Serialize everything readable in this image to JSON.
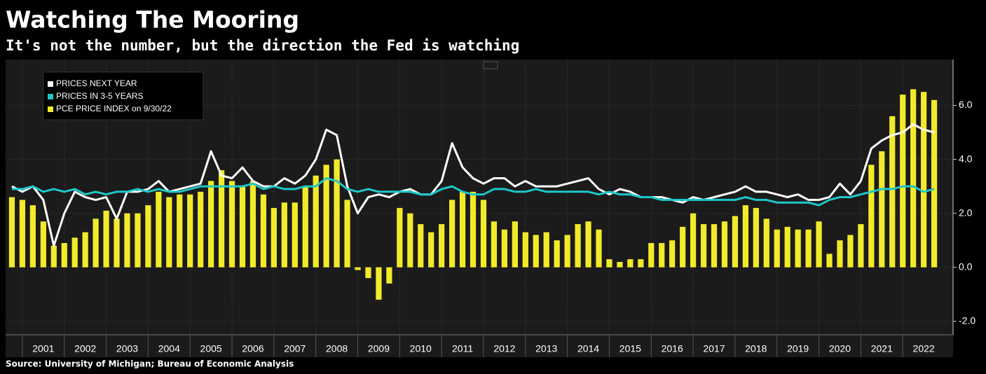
{
  "chart_data": {
    "type": "bar-line",
    "title": "Watching The Mooring",
    "subtitle": "It's not the number, but the direction the Fed is watching",
    "source": "Source: University of Michigan; Bureau of Economic Analysis",
    "legend_position": "upper left",
    "grid": true,
    "xlim": [
      2000.6,
      2023.2
    ],
    "xticks": [
      2001,
      2002,
      2003,
      2004,
      2005,
      2006,
      2007,
      2008,
      2009,
      2010,
      2011,
      2012,
      2013,
      2014,
      2015,
      2016,
      2017,
      2018,
      2019,
      2020,
      2021,
      2022
    ],
    "ylim": [
      -2.5,
      7.7
    ],
    "yticks": [
      {
        "value": -2,
        "label": "-2.0"
      },
      {
        "value": 0,
        "label": "0.0"
      },
      {
        "value": 2,
        "label": "2.0"
      },
      {
        "value": 4,
        "label": "4.0"
      },
      {
        "value": 6,
        "label": "6.0"
      }
    ],
    "x": [
      2000.75,
      2001,
      2001.25,
      2001.5,
      2001.75,
      2002,
      2002.25,
      2002.5,
      2002.75,
      2003,
      2003.25,
      2003.5,
      2003.75,
      2004,
      2004.25,
      2004.5,
      2004.75,
      2005,
      2005.25,
      2005.5,
      2005.75,
      2006,
      2006.25,
      2006.5,
      2006.75,
      2007,
      2007.25,
      2007.5,
      2007.75,
      2008,
      2008.25,
      2008.5,
      2008.75,
      2009,
      2009.25,
      2009.5,
      2009.75,
      2010,
      2010.25,
      2010.5,
      2010.75,
      2011,
      2011.25,
      2011.5,
      2011.75,
      2012,
      2012.25,
      2012.5,
      2012.75,
      2013,
      2013.25,
      2013.5,
      2013.75,
      2014,
      2014.25,
      2014.5,
      2014.75,
      2015,
      2015.25,
      2015.5,
      2015.75,
      2016,
      2016.25,
      2016.5,
      2016.75,
      2017,
      2017.25,
      2017.5,
      2017.75,
      2018,
      2018.25,
      2018.5,
      2018.75,
      2019,
      2019.25,
      2019.5,
      2019.75,
      2020,
      2020.25,
      2020.5,
      2020.75,
      2021,
      2021.25,
      2021.5,
      2021.75,
      2022,
      2022.25,
      2022.5,
      2022.75
    ],
    "series": [
      {
        "name": "PRICES NEXT YEAR",
        "kind": "line",
        "color": "#ffffff",
        "values": [
          3.0,
          2.8,
          3.0,
          2.5,
          0.8,
          2.0,
          2.8,
          2.6,
          2.5,
          2.6,
          1.8,
          2.8,
          2.8,
          2.9,
          3.2,
          2.8,
          2.9,
          3.0,
          3.1,
          4.3,
          3.4,
          3.3,
          3.7,
          3.2,
          3.0,
          3.0,
          3.3,
          3.1,
          3.4,
          4.0,
          5.1,
          4.9,
          3.0,
          2.0,
          2.6,
          2.7,
          2.6,
          2.8,
          2.9,
          2.7,
          2.7,
          3.2,
          4.6,
          3.7,
          3.3,
          3.1,
          3.3,
          3.3,
          3.0,
          3.2,
          3.0,
          3.0,
          3.0,
          3.1,
          3.2,
          3.3,
          2.9,
          2.7,
          2.9,
          2.8,
          2.6,
          2.6,
          2.6,
          2.5,
          2.4,
          2.6,
          2.5,
          2.6,
          2.7,
          2.8,
          3.0,
          2.8,
          2.8,
          2.7,
          2.6,
          2.7,
          2.5,
          2.5,
          2.6,
          3.1,
          2.7,
          3.2,
          4.4,
          4.7,
          4.9,
          5.0,
          5.3,
          5.1,
          5.0
        ]
      },
      {
        "name": "PRICES IN 3-5 YEARS",
        "kind": "line",
        "color": "#1fc7c9",
        "values": [
          2.9,
          2.9,
          3.0,
          2.8,
          2.9,
          2.8,
          2.9,
          2.7,
          2.8,
          2.7,
          2.8,
          2.8,
          2.9,
          2.8,
          2.9,
          2.8,
          2.8,
          2.9,
          3.0,
          3.0,
          3.0,
          3.0,
          3.0,
          3.1,
          2.9,
          3.0,
          2.9,
          2.9,
          3.0,
          3.0,
          3.3,
          3.2,
          2.9,
          2.8,
          2.9,
          2.8,
          2.8,
          2.8,
          2.8,
          2.7,
          2.7,
          2.9,
          3.0,
          2.8,
          2.7,
          2.7,
          2.9,
          2.9,
          2.8,
          2.8,
          2.9,
          2.8,
          2.8,
          2.8,
          2.8,
          2.8,
          2.7,
          2.8,
          2.7,
          2.7,
          2.6,
          2.6,
          2.5,
          2.5,
          2.5,
          2.5,
          2.5,
          2.5,
          2.5,
          2.5,
          2.6,
          2.5,
          2.5,
          2.4,
          2.4,
          2.4,
          2.4,
          2.3,
          2.5,
          2.6,
          2.6,
          2.7,
          2.8,
          2.9,
          2.9,
          3.0,
          3.0,
          2.8,
          2.9
        ]
      },
      {
        "name": "PCE PRICE INDEX on 9/30/22",
        "kind": "bar",
        "color": "#f2ea2a",
        "values": [
          2.6,
          2.5,
          2.3,
          1.7,
          0.8,
          0.9,
          1.1,
          1.3,
          1.8,
          2.1,
          1.8,
          2.0,
          2.0,
          2.3,
          2.8,
          2.6,
          2.7,
          2.7,
          2.8,
          3.2,
          3.6,
          3.2,
          3.0,
          3.2,
          2.7,
          2.2,
          2.4,
          2.4,
          3.0,
          3.4,
          3.8,
          4.0,
          2.5,
          -0.1,
          -0.4,
          -1.2,
          -0.6,
          2.2,
          2.0,
          1.6,
          1.3,
          1.6,
          2.5,
          2.8,
          2.8,
          2.5,
          1.7,
          1.4,
          1.7,
          1.3,
          1.2,
          1.3,
          1.0,
          1.2,
          1.6,
          1.7,
          1.4,
          0.3,
          0.2,
          0.3,
          0.3,
          0.9,
          0.9,
          1.0,
          1.5,
          2.0,
          1.6,
          1.6,
          1.7,
          1.9,
          2.3,
          2.2,
          1.8,
          1.4,
          1.5,
          1.4,
          1.4,
          1.7,
          0.5,
          1.0,
          1.2,
          1.6,
          3.8,
          4.3,
          5.6,
          6.4,
          6.6,
          6.5,
          6.2
        ]
      }
    ]
  }
}
